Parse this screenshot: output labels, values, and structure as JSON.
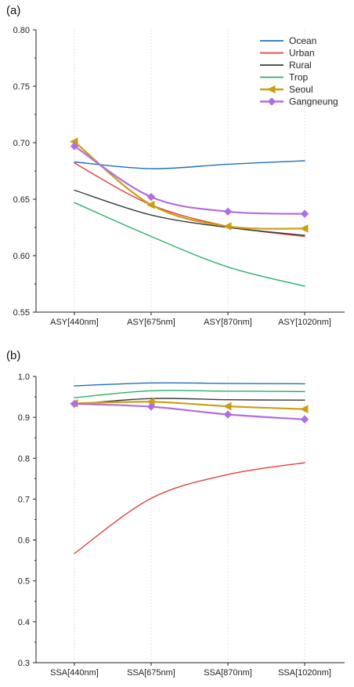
{
  "chart_data": [
    {
      "panel_label": "(a)",
      "type": "line",
      "categories": [
        "ASY[440nm]",
        "ASY[675nm]",
        "ASY[870nm]",
        "ASY[1020nm]"
      ],
      "ylim": [
        0.55,
        0.8
      ],
      "yticks": [
        "0.55",
        "0.60",
        "0.65",
        "0.70",
        "0.75",
        "0.80"
      ],
      "grid": true,
      "legend_position": "top-right",
      "series": [
        {
          "name": "Ocean",
          "color": "#1f6fbf",
          "marker": "none",
          "values": [
            0.683,
            0.677,
            0.681,
            0.684
          ]
        },
        {
          "name": "Urban",
          "color": "#e0413b",
          "marker": "none",
          "values": [
            0.682,
            0.645,
            0.626,
            0.617
          ]
        },
        {
          "name": "Rural",
          "color": "#3a3a3a",
          "marker": "none",
          "values": [
            0.658,
            0.636,
            0.625,
            0.618
          ]
        },
        {
          "name": "Trop",
          "color": "#2bb06a",
          "marker": "none",
          "values": [
            0.647,
            0.617,
            0.59,
            0.573
          ]
        },
        {
          "name": "Seoul",
          "color": "#c9a012",
          "marker": "triangle-left",
          "values": [
            0.701,
            0.645,
            0.626,
            0.624
          ]
        },
        {
          "name": "Gangneung",
          "color": "#b06ee0",
          "marker": "diamond",
          "values": [
            0.697,
            0.652,
            0.639,
            0.637
          ]
        }
      ]
    },
    {
      "panel_label": "(b)",
      "type": "line",
      "categories": [
        "SSA[440nm]",
        "SSA[675nm]",
        "SSA[870nm]",
        "SSA[1020nm]"
      ],
      "ylim": [
        0.3,
        1.0
      ],
      "yticks": [
        "0.3",
        "0.4",
        "0.5",
        "0.6",
        "0.7",
        "0.8",
        "0.9",
        "1.0"
      ],
      "grid": true,
      "series": [
        {
          "name": "Ocean",
          "color": "#1f6fbf",
          "marker": "none",
          "values": [
            0.977,
            0.984,
            0.983,
            0.982
          ]
        },
        {
          "name": "Urban",
          "color": "#e0413b",
          "marker": "none",
          "values": [
            0.567,
            0.702,
            0.76,
            0.789
          ]
        },
        {
          "name": "Rural",
          "color": "#3a3a3a",
          "marker": "none",
          "values": [
            0.932,
            0.946,
            0.943,
            0.942
          ]
        },
        {
          "name": "Trop",
          "color": "#2bb06a",
          "marker": "none",
          "values": [
            0.948,
            0.965,
            0.964,
            0.963
          ]
        },
        {
          "name": "Seoul",
          "color": "#c9a012",
          "marker": "triangle-left",
          "values": [
            0.934,
            0.938,
            0.927,
            0.92
          ]
        },
        {
          "name": "Gangneung",
          "color": "#b06ee0",
          "marker": "diamond",
          "values": [
            0.933,
            0.926,
            0.907,
            0.895
          ]
        }
      ]
    }
  ]
}
